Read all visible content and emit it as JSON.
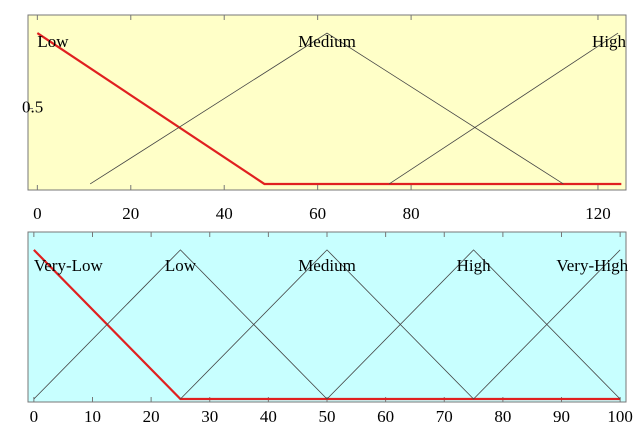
{
  "chart_data": [
    {
      "type": "line",
      "background": "#ffffc8",
      "xlim": [
        -2,
        126
      ],
      "ylim": [
        -0.04,
        1.12
      ],
      "xticks": [
        0,
        20,
        40,
        60,
        80,
        120
      ],
      "yticks": [
        0.5
      ],
      "series": [
        {
          "name": "Low",
          "color": "#e02020",
          "x": [
            0,
            48.6,
            125
          ],
          "values": [
            1,
            0,
            0
          ]
        },
        {
          "name": "Medium",
          "color": "#444444",
          "x": [
            11.3,
            62,
            112.6
          ],
          "values": [
            0,
            1,
            0
          ]
        },
        {
          "name": "High",
          "color": "#444444",
          "x": [
            75.3,
            124.3
          ],
          "values": [
            0,
            1
          ]
        }
      ]
    },
    {
      "type": "line",
      "background": "#c8ffff",
      "xlim": [
        -1,
        101
      ],
      "ylim": [
        -0.02,
        1.12
      ],
      "xticks": [
        0,
        10,
        20,
        30,
        40,
        50,
        60,
        70,
        80,
        90,
        100
      ],
      "series": [
        {
          "name": "Very-Low",
          "color": "#e02020",
          "x": [
            0,
            25,
            100
          ],
          "values": [
            1,
            0,
            0
          ]
        },
        {
          "name": "Low",
          "color": "#444444",
          "x": [
            0,
            25,
            50
          ],
          "values": [
            0,
            1,
            0
          ]
        },
        {
          "name": "Medium",
          "color": "#444444",
          "x": [
            25,
            50,
            75
          ],
          "values": [
            0,
            1,
            0
          ]
        },
        {
          "name": "High",
          "color": "#444444",
          "x": [
            50,
            75,
            100
          ],
          "values": [
            0,
            1,
            0
          ]
        },
        {
          "name": "Very-High",
          "color": "#444444",
          "x": [
            75,
            100
          ],
          "values": [
            0,
            1
          ]
        }
      ]
    }
  ]
}
